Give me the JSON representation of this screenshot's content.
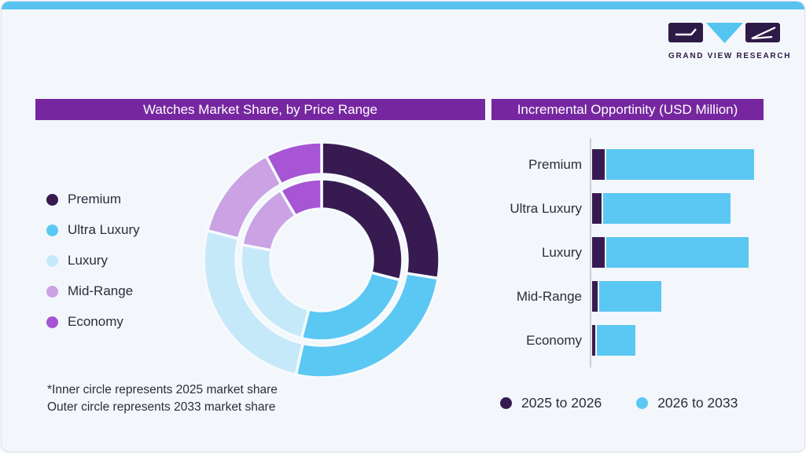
{
  "brand": {
    "name": "GRAND VIEW RESEARCH"
  },
  "panels": {
    "left": {
      "title": "Watches Market Share, by Price Range",
      "footnote": [
        "*Inner circle represents 2025 market share",
        "Outer circle represents 2033 market share"
      ]
    },
    "right": {
      "title": "Incremental Opportinity (USD Million)"
    }
  },
  "colors": {
    "header_bg": "#7627A0",
    "accent_bar": "#59C3EF",
    "card_bg": "#F3F7FB",
    "logo_dark": "#2E1A47",
    "logo_blue": "#54C4F0",
    "text": "#2E2B3D"
  },
  "chart_data": [
    {
      "type": "donut",
      "title": "Watches Market Share, by Price Range",
      "categories": [
        "Premium",
        "Ultra Luxury",
        "Luxury",
        "Mid-Range",
        "Economy"
      ],
      "colors": [
        "#371B50",
        "#5BC7F3",
        "#C6E9FA",
        "#CBA2E4",
        "#A754D5"
      ],
      "rings": [
        {
          "name": "2025 market share (inner circle)",
          "values": [
            29,
            25,
            24,
            13.5,
            8.5
          ]
        },
        {
          "name": "2033 market share (outer circle)",
          "values": [
            27.5,
            26,
            25.5,
            13.2,
            7.8
          ]
        }
      ],
      "start_angle_deg": 0,
      "direction": "clockwise",
      "units": "percent, estimated from arc angles"
    },
    {
      "type": "bar",
      "orientation": "horizontal",
      "title": "Incremental Opportinity (USD Million)",
      "categories": [
        "Premium",
        "Ultra Luxury",
        "Luxury",
        "Mid-Range",
        "Economy"
      ],
      "series": [
        {
          "name": "2025 to 2026",
          "color": "#371B50",
          "values": [
            7.8,
            6.0,
            7.8,
            3.3,
            2.1
          ]
        },
        {
          "name": "2026 to 2033",
          "color": "#5BC7F3",
          "values": [
            92.2,
            79.4,
            88.9,
            38.7,
            23.9
          ]
        }
      ],
      "value_axis_visible": false,
      "units": "relative bar length (no numeric axis labels shown)"
    }
  ]
}
